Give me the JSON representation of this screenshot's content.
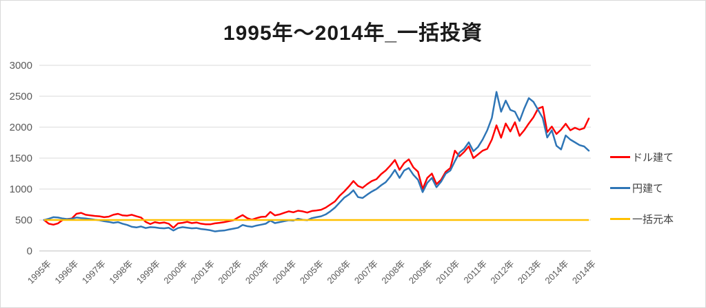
{
  "title": "1995年～2014年_一括投資",
  "colors": {
    "dollar_series": "#ff0000",
    "yen_series": "#2e75b6",
    "principal_series": "#ffc000",
    "gridline": "#d9d9d9",
    "axis_line": "#bfbfbf",
    "tick_text": "#595959",
    "title_text": "#1a1a1a",
    "legend_text": "#404040"
  },
  "legend": {
    "items": [
      {
        "id": "dollar",
        "label": "ドル建て"
      },
      {
        "id": "yen",
        "label": "円建て"
      },
      {
        "id": "principal",
        "label": "一括元本"
      }
    ]
  },
  "chart_data": {
    "type": "line",
    "title": "1995年～2014年_一括投資",
    "xlabel": "",
    "ylabel": "",
    "ylim": [
      0,
      3000
    ],
    "y_ticks": [
      0,
      500,
      1000,
      1500,
      2000,
      2500,
      3000
    ],
    "x_tick_labels": [
      "1995年",
      "1996年",
      "1997年",
      "1998年",
      "1999年",
      "2000年",
      "2001年",
      "2002年",
      "2003年",
      "2004年",
      "2005年",
      "2006年",
      "2007年",
      "2008年",
      "2009年",
      "2010年",
      "2011年",
      "2012年",
      "2013年",
      "2014年",
      "2014年"
    ],
    "grid": true,
    "legend_position": "right",
    "x_start_year": 1995.0,
    "x_step_years": 0.1667,
    "x_end_year": 2014.67,
    "series": [
      {
        "id": "dollar",
        "name": "ドル建て",
        "color": "#ff0000",
        "values": [
          500,
          440,
          425,
          445,
          500,
          515,
          525,
          600,
          615,
          585,
          575,
          565,
          560,
          545,
          555,
          585,
          600,
          575,
          570,
          585,
          560,
          540,
          470,
          435,
          465,
          450,
          460,
          440,
          375,
          445,
          455,
          470,
          450,
          460,
          440,
          430,
          430,
          445,
          455,
          465,
          480,
          495,
          540,
          580,
          530,
          505,
          530,
          550,
          555,
          630,
          575,
          590,
          615,
          640,
          625,
          650,
          640,
          620,
          645,
          655,
          665,
          700,
          750,
          800,
          890,
          960,
          1040,
          1130,
          1050,
          1020,
          1080,
          1130,
          1160,
          1240,
          1300,
          1380,
          1470,
          1310,
          1420,
          1480,
          1350,
          1280,
          1000,
          1180,
          1250,
          1080,
          1150,
          1280,
          1340,
          1620,
          1530,
          1600,
          1690,
          1500,
          1560,
          1620,
          1650,
          1800,
          2030,
          1830,
          2060,
          1930,
          2080,
          1860,
          1950,
          2060,
          2160,
          2300,
          2330,
          1920,
          2010,
          1890,
          1960,
          2056,
          1950,
          1990,
          1960,
          1985,
          2140
        ]
      },
      {
        "id": "yen",
        "name": "円建て",
        "color": "#2e75b6",
        "values": [
          500,
          520,
          545,
          540,
          525,
          515,
          520,
          540,
          530,
          525,
          515,
          505,
          495,
          480,
          470,
          455,
          465,
          440,
          420,
          390,
          380,
          395,
          370,
          385,
          380,
          370,
          365,
          375,
          330,
          370,
          385,
          375,
          365,
          370,
          355,
          345,
          335,
          315,
          325,
          330,
          345,
          360,
          375,
          420,
          400,
          390,
          410,
          425,
          440,
          490,
          450,
          465,
          480,
          495,
          490,
          520,
          505,
          495,
          530,
          545,
          560,
          590,
          640,
          700,
          780,
          860,
          910,
          980,
          870,
          856,
          910,
          960,
          1000,
          1060,
          1110,
          1200,
          1310,
          1180,
          1300,
          1340,
          1230,
          1150,
          950,
          1100,
          1180,
          1030,
          1120,
          1250,
          1300,
          1450,
          1590,
          1650,
          1756,
          1611,
          1680,
          1800,
          1950,
          2150,
          2570,
          2250,
          2430,
          2280,
          2250,
          2100,
          2300,
          2470,
          2410,
          2280,
          2150,
          1833,
          1950,
          1700,
          1640,
          1867,
          1800,
          1756,
          1710,
          1689,
          1620
        ]
      },
      {
        "id": "principal",
        "name": "一括元本",
        "color": "#ffc000",
        "constant": 500
      }
    ]
  }
}
